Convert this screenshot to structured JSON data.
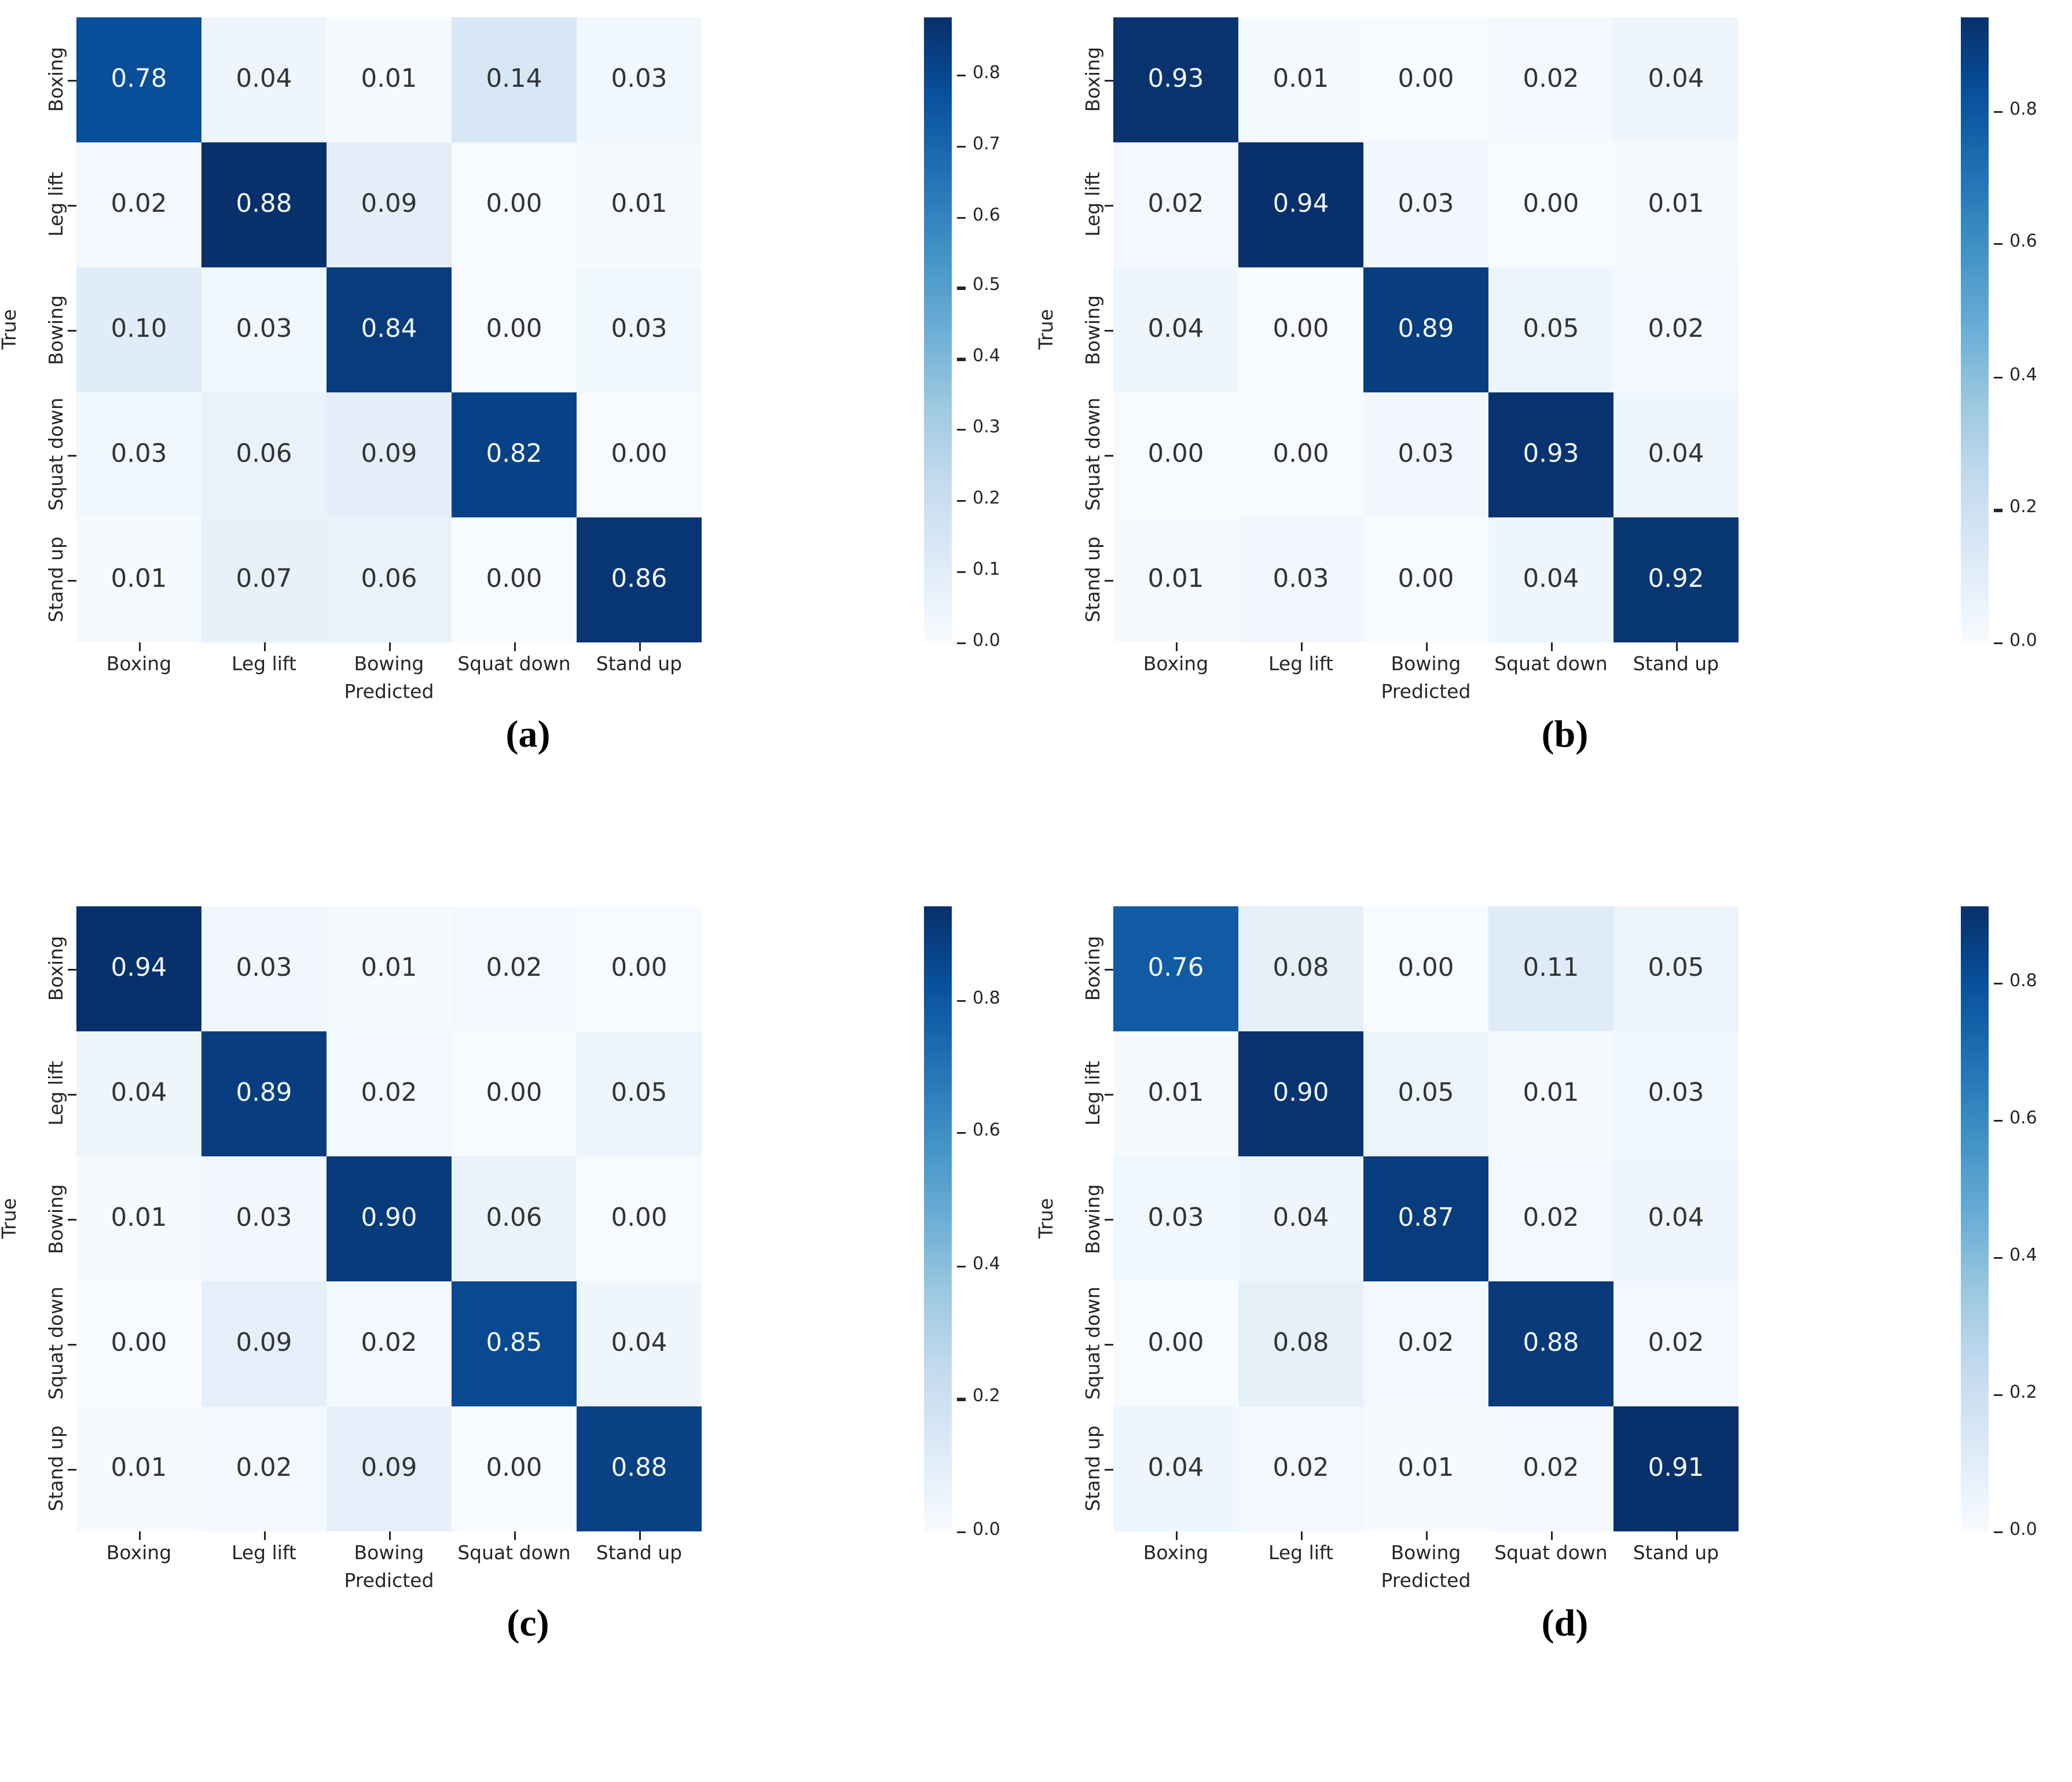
{
  "colors": {
    "background": "#ffffff",
    "colormap_blues_anchors": [
      "#f7fbff",
      "#deebf7",
      "#c6dbef",
      "#9ecae1",
      "#6baed6",
      "#4292c6",
      "#2171b5",
      "#08519c",
      "#08306b"
    ],
    "cell_text_dark": "#333333",
    "cell_text_light": "#f2f7fb",
    "axis_text": "#262626"
  },
  "chart_data": [
    {
      "type": "heatmap",
      "panel_label": "(a)",
      "xlabel": "Predicted",
      "ylabel": "True",
      "x_categories": [
        "Boxing",
        "Leg lift",
        "Bowing",
        "Squat down",
        "Stand up"
      ],
      "y_categories": [
        "Boxing",
        "Leg lift",
        "Bowing",
        "Squat down",
        "Stand up"
      ],
      "matrix": [
        [
          0.78,
          0.04,
          0.01,
          0.14,
          0.03
        ],
        [
          0.02,
          0.88,
          0.09,
          0.0,
          0.01
        ],
        [
          0.1,
          0.03,
          0.84,
          0.0,
          0.03
        ],
        [
          0.03,
          0.06,
          0.09,
          0.82,
          0.0
        ],
        [
          0.01,
          0.07,
          0.06,
          0.0,
          0.86
        ]
      ],
      "vmin": 0.0,
      "vmax": 0.88,
      "colormap": "Blues",
      "colorbar_position": "right",
      "colorbar_ticks": [
        0.0,
        0.1,
        0.2,
        0.3,
        0.4,
        0.5,
        0.6,
        0.7,
        0.8
      ],
      "value_decimals": 2,
      "grid": false
    },
    {
      "type": "heatmap",
      "panel_label": "(b)",
      "xlabel": "Predicted",
      "ylabel": "True",
      "x_categories": [
        "Boxing",
        "Leg lift",
        "Bowing",
        "Squat down",
        "Stand up"
      ],
      "y_categories": [
        "Boxing",
        "Leg lift",
        "Bowing",
        "Squat down",
        "Stand up"
      ],
      "matrix": [
        [
          0.93,
          0.01,
          0.0,
          0.02,
          0.04
        ],
        [
          0.02,
          0.94,
          0.03,
          0.0,
          0.01
        ],
        [
          0.04,
          0.0,
          0.89,
          0.05,
          0.02
        ],
        [
          0.0,
          0.0,
          0.03,
          0.93,
          0.04
        ],
        [
          0.01,
          0.03,
          0.0,
          0.04,
          0.92
        ]
      ],
      "vmin": 0.0,
      "vmax": 0.94,
      "colormap": "Blues",
      "colorbar_position": "right",
      "colorbar_ticks": [
        0.0,
        0.2,
        0.4,
        0.6,
        0.8
      ],
      "value_decimals": 2,
      "grid": false
    },
    {
      "type": "heatmap",
      "panel_label": "(c)",
      "xlabel": "Predicted",
      "ylabel": "True",
      "x_categories": [
        "Boxing",
        "Leg lift",
        "Bowing",
        "Squat down",
        "Stand up"
      ],
      "y_categories": [
        "Boxing",
        "Leg lift",
        "Bowing",
        "Squat down",
        "Stand up"
      ],
      "matrix": [
        [
          0.94,
          0.03,
          0.01,
          0.02,
          0.0
        ],
        [
          0.04,
          0.89,
          0.02,
          0.0,
          0.05
        ],
        [
          0.01,
          0.03,
          0.9,
          0.06,
          0.0
        ],
        [
          0.0,
          0.09,
          0.02,
          0.85,
          0.04
        ],
        [
          0.01,
          0.02,
          0.09,
          0.0,
          0.88
        ]
      ],
      "vmin": 0.0,
      "vmax": 0.94,
      "colormap": "Blues",
      "colorbar_position": "right",
      "colorbar_ticks": [
        0.0,
        0.2,
        0.4,
        0.6,
        0.8
      ],
      "value_decimals": 2,
      "grid": false
    },
    {
      "type": "heatmap",
      "panel_label": "(d)",
      "xlabel": "Predicted",
      "ylabel": "True",
      "x_categories": [
        "Boxing",
        "Leg lift",
        "Bowing",
        "Squat down",
        "Stand up"
      ],
      "y_categories": [
        "Boxing",
        "Leg lift",
        "Bowing",
        "Squat down",
        "Stand up"
      ],
      "matrix": [
        [
          0.76,
          0.08,
          0.0,
          0.11,
          0.05
        ],
        [
          0.01,
          0.9,
          0.05,
          0.01,
          0.03
        ],
        [
          0.03,
          0.04,
          0.87,
          0.02,
          0.04
        ],
        [
          0.0,
          0.08,
          0.02,
          0.88,
          0.02
        ],
        [
          0.04,
          0.02,
          0.01,
          0.02,
          0.91
        ]
      ],
      "vmin": 0.0,
      "vmax": 0.91,
      "colormap": "Blues",
      "colorbar_position": "right",
      "colorbar_ticks": [
        0.0,
        0.2,
        0.4,
        0.6,
        0.8
      ],
      "value_decimals": 2,
      "grid": false
    }
  ]
}
